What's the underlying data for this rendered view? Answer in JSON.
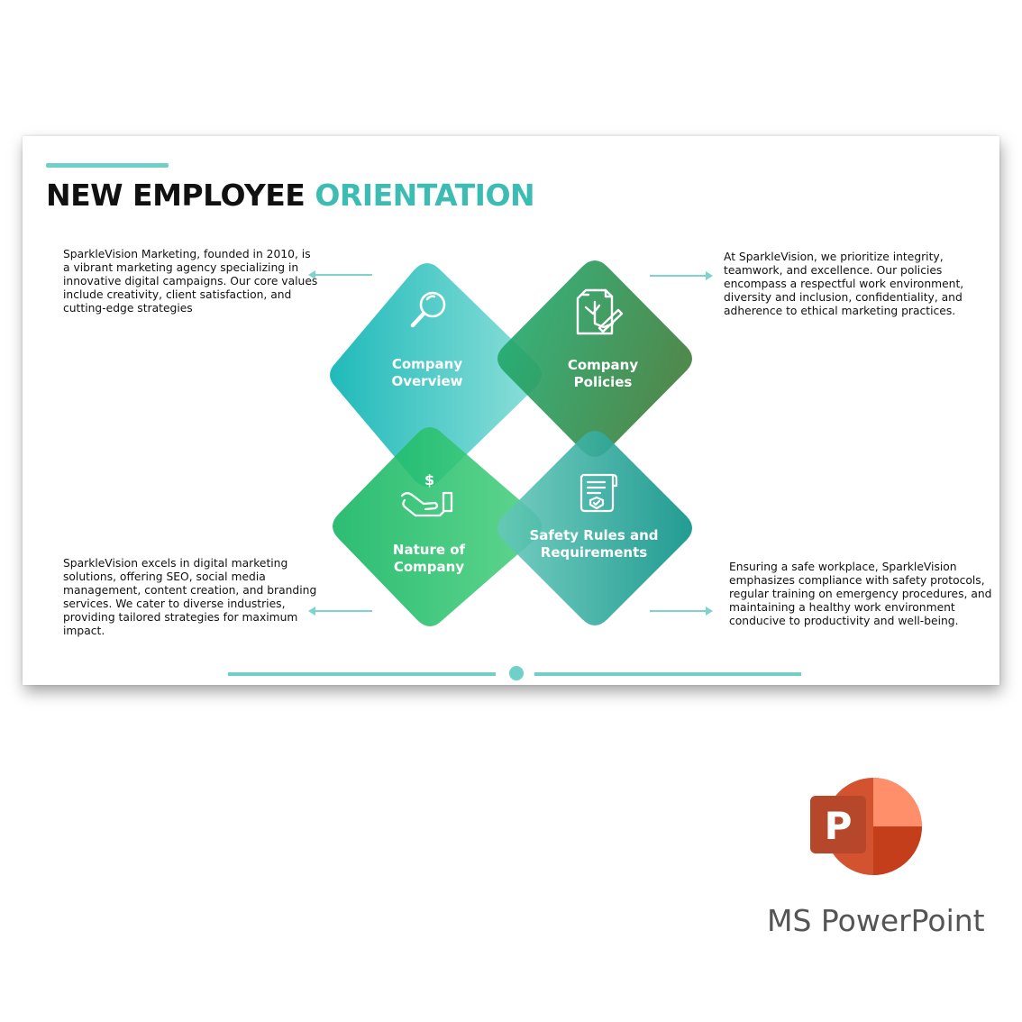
{
  "slide": {
    "title_part1": "NEW EMPLOYEE",
    "title_part2": "ORIENTATION",
    "colors": {
      "accent": "#6fcfc9",
      "title_highlight": "#3cbcb3",
      "green": "#1aa86a"
    },
    "descriptions": {
      "top_left": "SparkleVision Marketing, founded in 2010, is a vibrant marketing agency specializing in innovative digital campaigns. Our core values include creativity, client satisfaction, and cutting-edge strategies",
      "top_right": "At SparkleVision, we prioritize integrity, teamwork, and excellence. Our policies encompass a respectful work environment, diversity and inclusion, confidentiality, and adherence to ethical marketing practices.",
      "bottom_left": "SparkleVision excels in digital marketing solutions, offering SEO, social media management, content creation, and branding services. We cater to diverse industries, providing tailored strategies for maximum impact.",
      "bottom_right": "Ensuring a safe workplace, SparkleVision emphasizes compliance with safety protocols, regular training on emergency procedures, and maintaining a healthy work environment conducive to productivity and well-being."
    },
    "diamonds": [
      {
        "label": "Company Overview",
        "icon": "magnifier-icon"
      },
      {
        "label": "Company Policies",
        "icon": "policy-document-icon"
      },
      {
        "label": "Nature of Company",
        "icon": "hand-dollar-icon"
      },
      {
        "label": "Safety Rules and Requirements",
        "icon": "checklist-document-icon"
      }
    ]
  },
  "app": {
    "name": "MS PowerPoint",
    "logo_letter": "P"
  }
}
